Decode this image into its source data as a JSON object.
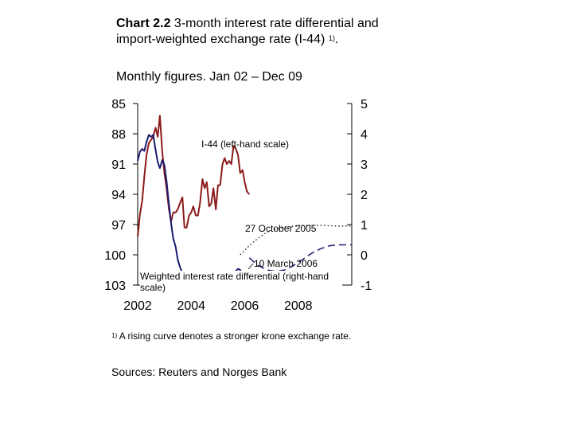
{
  "header": {
    "chart_no": "Chart 2.2",
    "title": "3-month interest rate differential and import-weighted exchange rate (I-44)",
    "footnote_ref": "1)",
    "subtitle": "Monthly figures. Jan 02 – Dec 09"
  },
  "footnote": {
    "mark": "1)",
    "text": "A rising curve denotes a stronger krone exchange rate."
  },
  "sources": "Sources: Reuters and Norges Bank",
  "chart_data": {
    "type": "line",
    "x_ticks": [
      "2002",
      "2004",
      "2006",
      "2008"
    ],
    "left_axis": {
      "ticks": [
        "85",
        "88",
        "91",
        "94",
        "97",
        "100",
        "103"
      ],
      "range": [
        103,
        85
      ],
      "inverted": true
    },
    "right_axis": {
      "ticks": [
        "5",
        "4",
        "3",
        "2",
        "1",
        "0",
        "-1"
      ],
      "range": [
        -1,
        5
      ]
    },
    "annotations": {
      "i44": "I-44 (left-hand scale)",
      "oct2005": "27 October 2005",
      "mar2006": "10 March 2006",
      "diff": "Weighted interest rate differential (right-hand scale)"
    },
    "series": [
      {
        "color": "#8b1a1a",
        "axis": "right",
        "x": [
          2002.0,
          2002.08,
          2002.17,
          2002.25,
          2002.33,
          2002.42,
          2002.5,
          2002.58,
          2002.67,
          2002.75,
          2002.83,
          2002.92,
          2003.0,
          2003.08,
          2003.17,
          2003.25,
          2003.33,
          2003.42,
          2003.5,
          2003.58,
          2003.67,
          2003.75,
          2003.83,
          2003.92,
          2004.0,
          2004.08,
          2004.17,
          2004.25,
          2004.33,
          2004.42,
          2004.5,
          2004.58,
          2004.67,
          2004.75,
          2004.83,
          2004.92,
          2005.0,
          2005.08,
          2005.17,
          2005.25,
          2005.33,
          2005.42,
          2005.5,
          2005.58,
          2005.67,
          2005.75,
          2005.83,
          2005.92,
          2006.0,
          2006.08,
          2006.17
        ],
        "y": [
          0.6,
          1.3,
          1.8,
          2.6,
          3.3,
          3.7,
          3.8,
          3.9,
          4.2,
          3.9,
          4.6,
          3.4,
          2.7,
          2.2,
          1.5,
          1.1,
          1.4,
          1.4,
          1.5,
          1.7,
          1.9,
          0.9,
          0.9,
          1.3,
          1.4,
          1.6,
          1.3,
          1.3,
          1.7,
          2.5,
          2.2,
          2.4,
          1.6,
          1.7,
          2.2,
          1.5,
          2.3,
          2.3,
          3.0,
          3.2,
          3.0,
          3.1,
          3.0,
          3.6,
          3.5,
          3.3,
          2.7,
          2.8,
          2.4,
          2.1,
          2.0
        ]
      },
      {
        "color": "#1a1a6e",
        "axis": "left",
        "x": [
          2002.0,
          2002.08,
          2002.17,
          2002.25,
          2002.33,
          2002.42,
          2002.5,
          2002.58,
          2002.67,
          2002.75,
          2002.83,
          2002.92,
          2003.0,
          2003.08,
          2003.17,
          2003.25,
          2003.33,
          2003.42,
          2003.5,
          2003.58,
          2003.67,
          2003.75,
          2003.83,
          2003.92,
          2004.0,
          2004.08,
          2004.17,
          2004.25,
          2004.33,
          2004.42,
          2004.5,
          2004.58,
          2004.67,
          2004.75,
          2004.83,
          2004.92,
          2005.0,
          2005.08,
          2005.17,
          2005.25,
          2005.33,
          2005.42,
          2005.5,
          2005.58,
          2005.67,
          2005.75,
          2005.83,
          2005.92,
          2006.0,
          2006.08,
          2006.17
        ],
        "y": [
          90.7,
          89.8,
          89.5,
          89.7,
          88.8,
          88.1,
          88.3,
          88.1,
          89.6,
          90.8,
          91.4,
          90.6,
          91.1,
          92.7,
          95.0,
          96.9,
          98.4,
          99.2,
          100.5,
          101.2,
          101.8,
          102.2,
          102.2,
          102.1,
          102.6,
          102.3,
          102.4,
          102.5,
          102.8,
          102.9,
          102.6,
          102.9,
          103.0,
          102.8,
          102.4,
          102.3,
          102.5,
          102.0,
          101.9,
          102.2,
          102.7,
          102.4,
          102.4,
          101.9,
          101.6,
          101.4,
          101.5,
          102.0,
          102.3,
          101.9,
          101.9
        ]
      },
      {
        "color": "#1a1a6e",
        "axis": "right",
        "dash": "dashed",
        "x": [
          2006.17,
          2006.5,
          2006.83,
          2007.17,
          2007.5,
          2007.83,
          2008.17,
          2008.5,
          2008.83,
          2009.17,
          2009.5,
          2009.83,
          2010.0
        ],
        "y": [
          -0.1,
          -0.35,
          -0.5,
          -0.55,
          -0.5,
          -0.35,
          -0.15,
          0.05,
          0.2,
          0.3,
          0.33,
          0.33,
          0.33
        ]
      },
      {
        "color": "#000000",
        "axis": "right",
        "dash": "dotted",
        "x": [
          2005.83,
          2006.17,
          2006.5,
          2006.83,
          2007.17,
          2007.5,
          2007.83,
          2008.17,
          2008.5,
          2008.83,
          2009.17,
          2009.5,
          2009.83,
          2010.0
        ],
        "y": [
          0.0,
          0.3,
          0.55,
          0.75,
          0.85,
          0.92,
          0.95,
          0.97,
          0.97,
          0.97,
          0.96,
          0.95,
          0.95,
          0.95
        ]
      }
    ]
  }
}
